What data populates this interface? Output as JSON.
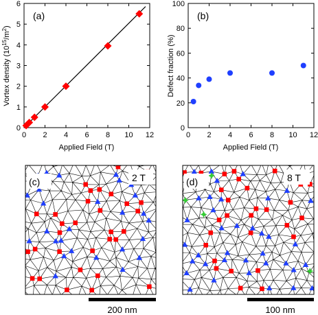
{
  "chart_data": [
    {
      "type": "scatter",
      "panel_label": "(a)",
      "xlabel": "Applied Field (T)",
      "ylabel": "Vortex density (10^15/m^2)",
      "xlim": [
        0,
        12
      ],
      "ylim": [
        0,
        6
      ],
      "xticks": [
        0,
        2,
        4,
        6,
        8,
        10,
        12
      ],
      "yticks": [
        0,
        1,
        2,
        3,
        4,
        5,
        6
      ],
      "marker": "diamond",
      "marker_color": "#ff0000",
      "fit_line": {
        "x": [
          0,
          11.6
        ],
        "y": [
          0,
          5.85
        ]
      },
      "x": [
        0.2,
        0.5,
        1,
        2,
        4,
        8,
        11
      ],
      "y": [
        0.1,
        0.25,
        0.5,
        1.0,
        2.0,
        3.95,
        5.5
      ]
    },
    {
      "type": "scatter",
      "panel_label": "(b)",
      "xlabel": "Applied Field (T)",
      "ylabel": "Defect fraction (%)",
      "xlim": [
        0,
        12
      ],
      "ylim": [
        0,
        100
      ],
      "xticks": [
        0,
        2,
        4,
        6,
        8,
        10,
        12
      ],
      "yticks": [
        0,
        20,
        40,
        60,
        80,
        100
      ],
      "marker": "circle",
      "marker_color": "#1f3fff",
      "x": [
        0.5,
        1,
        2,
        4,
        8,
        11
      ],
      "y": [
        21,
        34,
        39,
        44,
        44,
        50
      ]
    }
  ],
  "micrographs": [
    {
      "panel_label": "(c)",
      "field_label": "2 T",
      "scale_bar": "200 nm"
    },
    {
      "panel_label": "(d)",
      "field_label": "8 T",
      "scale_bar": "100 nm"
    }
  ],
  "colors": {
    "five_fold": "#1f3fff",
    "seven_fold": "#ff0000",
    "other": "#33cc33"
  }
}
